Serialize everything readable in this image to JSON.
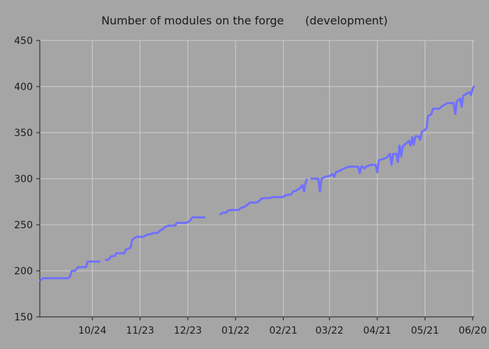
{
  "chart_data": {
    "type": "line",
    "title": "Number of modules on the forge      (development)",
    "xlabel": "",
    "ylabel": "",
    "ylim": [
      150,
      450
    ],
    "yticks": [
      150,
      200,
      250,
      300,
      350,
      400,
      450
    ],
    "xlim": [
      "2024-09-21",
      "2025-06-21"
    ],
    "xticks": [
      {
        "date": "2024-10-24",
        "label": "10/24"
      },
      {
        "date": "2024-11-23",
        "label": "11/23"
      },
      {
        "date": "2024-12-23",
        "label": "12/23"
      },
      {
        "date": "2025-01-22",
        "label": "01/22"
      },
      {
        "date": "2025-02-21",
        "label": "02/21"
      },
      {
        "date": "2025-03-22",
        "label": "03/22"
      },
      {
        "date": "2025-04-21",
        "label": "04/21"
      },
      {
        "date": "2025-05-21",
        "label": "05/21"
      },
      {
        "date": "2025-06-20",
        "label": "06/20"
      }
    ],
    "grid": true,
    "line_color": "#7070ff",
    "background_color": "#a5a5a5",
    "grid_color": "#cfcfcf",
    "segments": [
      [
        [
          "2024-09-21",
          189
        ],
        [
          "2024-09-23",
          192
        ],
        [
          "2024-10-09",
          192
        ],
        [
          "2024-10-10",
          194
        ],
        [
          "2024-10-11",
          200
        ],
        [
          "2024-10-13",
          200
        ],
        [
          "2024-10-15",
          204
        ],
        [
          "2024-10-20",
          204
        ],
        [
          "2024-10-21",
          210
        ],
        [
          "2024-10-29",
          210
        ]
      ],
      [
        [
          "2024-11-01",
          212
        ],
        [
          "2024-11-03",
          212
        ],
        [
          "2024-11-05",
          216
        ],
        [
          "2024-11-07",
          216
        ],
        [
          "2024-11-08",
          219
        ],
        [
          "2024-11-13",
          219
        ],
        [
          "2024-11-14",
          223
        ],
        [
          "2024-11-17",
          225
        ],
        [
          "2024-11-18",
          233
        ],
        [
          "2024-11-19",
          235
        ],
        [
          "2024-11-21",
          237
        ],
        [
          "2024-11-25",
          237
        ],
        [
          "2024-11-27",
          239
        ],
        [
          "2024-11-30",
          240
        ],
        [
          "2024-12-01",
          241
        ],
        [
          "2024-12-04",
          241
        ],
        [
          "2024-12-05",
          243
        ],
        [
          "2024-12-07",
          245
        ],
        [
          "2024-12-09",
          248
        ],
        [
          "2024-12-11",
          249
        ],
        [
          "2024-12-15",
          249
        ],
        [
          "2024-12-16",
          252
        ],
        [
          "2024-12-22",
          252
        ],
        [
          "2024-12-24",
          254
        ],
        [
          "2024-12-26",
          258
        ],
        [
          "2025-01-03",
          258
        ]
      ],
      [
        [
          "2025-01-12",
          261
        ],
        [
          "2025-01-14",
          263
        ],
        [
          "2025-01-16",
          263
        ],
        [
          "2025-01-17",
          265
        ],
        [
          "2025-01-19",
          266
        ],
        [
          "2025-01-24",
          266
        ],
        [
          "2025-01-25",
          268
        ],
        [
          "2025-01-27",
          269
        ],
        [
          "2025-01-29",
          271
        ],
        [
          "2025-01-31",
          274
        ],
        [
          "2025-02-04",
          274
        ],
        [
          "2025-02-06",
          276
        ],
        [
          "2025-02-07",
          278
        ],
        [
          "2025-02-09",
          279
        ],
        [
          "2025-02-13",
          279
        ],
        [
          "2025-02-14",
          280
        ],
        [
          "2025-02-21",
          280
        ],
        [
          "2025-02-22",
          282
        ],
        [
          "2025-02-26",
          283
        ],
        [
          "2025-02-27",
          286
        ],
        [
          "2025-03-01",
          287
        ],
        [
          "2025-03-03",
          289
        ],
        [
          "2025-03-05",
          293
        ],
        [
          "2025-03-06",
          286
        ],
        [
          "2025-03-07",
          296
        ],
        [
          "2025-03-08",
          300
        ]
      ],
      [
        [
          "2025-03-10",
          300
        ],
        [
          "2025-03-15",
          300
        ],
        [
          "2025-03-16",
          286
        ],
        [
          "2025-03-17",
          300
        ],
        [
          "2025-03-19",
          302
        ],
        [
          "2025-03-22",
          303
        ],
        [
          "2025-03-24",
          305
        ],
        [
          "2025-03-25",
          302
        ],
        [
          "2025-03-26",
          307
        ],
        [
          "2025-03-29",
          309
        ],
        [
          "2025-03-31",
          311
        ],
        [
          "2025-04-03",
          313
        ],
        [
          "2025-04-09",
          313
        ],
        [
          "2025-04-10",
          306
        ],
        [
          "2025-04-11",
          313
        ],
        [
          "2025-04-12",
          313
        ],
        [
          "2025-04-13",
          311
        ],
        [
          "2025-04-14",
          313
        ],
        [
          "2025-04-17",
          315
        ],
        [
          "2025-04-20",
          315
        ],
        [
          "2025-04-21",
          307
        ],
        [
          "2025-04-22",
          320
        ],
        [
          "2025-04-24",
          321
        ],
        [
          "2025-04-27",
          323
        ],
        [
          "2025-04-29",
          327
        ],
        [
          "2025-04-30",
          315
        ],
        [
          "2025-05-01",
          327
        ],
        [
          "2025-05-03",
          327
        ],
        [
          "2025-05-04",
          318
        ],
        [
          "2025-05-05",
          336
        ],
        [
          "2025-05-06",
          324
        ],
        [
          "2025-05-07",
          335
        ],
        [
          "2025-05-09",
          338
        ],
        [
          "2025-05-11",
          341
        ],
        [
          "2025-05-12",
          336
        ],
        [
          "2025-05-13",
          345
        ],
        [
          "2025-05-14",
          337
        ],
        [
          "2025-05-15",
          346
        ],
        [
          "2025-05-17",
          346
        ],
        [
          "2025-05-18",
          342
        ],
        [
          "2025-05-19",
          351
        ],
        [
          "2025-05-21",
          353
        ],
        [
          "2025-05-22",
          355
        ],
        [
          "2025-05-23",
          368
        ],
        [
          "2025-05-25",
          370
        ],
        [
          "2025-05-26",
          376
        ],
        [
          "2025-05-30",
          376
        ],
        [
          "2025-06-01",
          379
        ],
        [
          "2025-06-04",
          382
        ],
        [
          "2025-06-08",
          382
        ],
        [
          "2025-06-09",
          370
        ],
        [
          "2025-06-10",
          384
        ],
        [
          "2025-06-12",
          387
        ],
        [
          "2025-06-13",
          378
        ],
        [
          "2025-06-14",
          390
        ],
        [
          "2025-06-16",
          392
        ],
        [
          "2025-06-18",
          394
        ],
        [
          "2025-06-19",
          391
        ],
        [
          "2025-06-20",
          398
        ],
        [
          "2025-06-21",
          401
        ]
      ]
    ]
  }
}
